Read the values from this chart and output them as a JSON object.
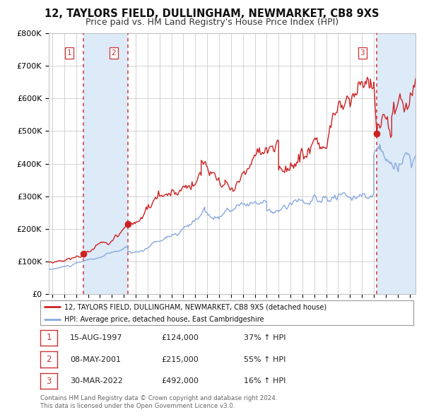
{
  "title": "12, TAYLORS FIELD, DULLINGHAM, NEWMARKET, CB8 9XS",
  "subtitle": "Price paid vs. HM Land Registry's House Price Index (HPI)",
  "title_fontsize": 10.5,
  "subtitle_fontsize": 9,
  "background_color": "#ffffff",
  "plot_bg_color": "#ffffff",
  "grid_color": "#cccccc",
  "red_line_color": "#cc2222",
  "blue_line_color": "#88aadd",
  "sale_marker_color": "#cc2222",
  "vline_color": "#cc3333",
  "vshade_color": "#ddeaf8",
  "ylim": [
    0,
    800000
  ],
  "yticks": [
    0,
    100000,
    200000,
    300000,
    400000,
    500000,
    600000,
    700000,
    800000
  ],
  "ytick_labels": [
    "£0",
    "£100K",
    "£200K",
    "£300K",
    "£400K",
    "£500K",
    "£600K",
    "£700K",
    "£800K"
  ],
  "xmin": 1994.7,
  "xmax": 2025.5,
  "sales": [
    {
      "index": 1,
      "date_str": "15-AUG-1997",
      "year": 1997.62,
      "price": 124000,
      "pct": "37%",
      "direction": "↑"
    },
    {
      "index": 2,
      "date_str": "08-MAY-2001",
      "year": 2001.35,
      "price": 215000,
      "pct": "55%",
      "direction": "↑"
    },
    {
      "index": 3,
      "date_str": "30-MAR-2022",
      "year": 2022.24,
      "price": 492000,
      "pct": "16%",
      "direction": "↑"
    }
  ],
  "legend_line1": "12, TAYLORS FIELD, DULLINGHAM, NEWMARKET, CB8 9XS (detached house)",
  "legend_line2": "HPI: Average price, detached house, East Cambridgeshire",
  "footer1": "Contains HM Land Registry data © Crown copyright and database right 2024.",
  "footer2": "This data is licensed under the Open Government Licence v3.0."
}
